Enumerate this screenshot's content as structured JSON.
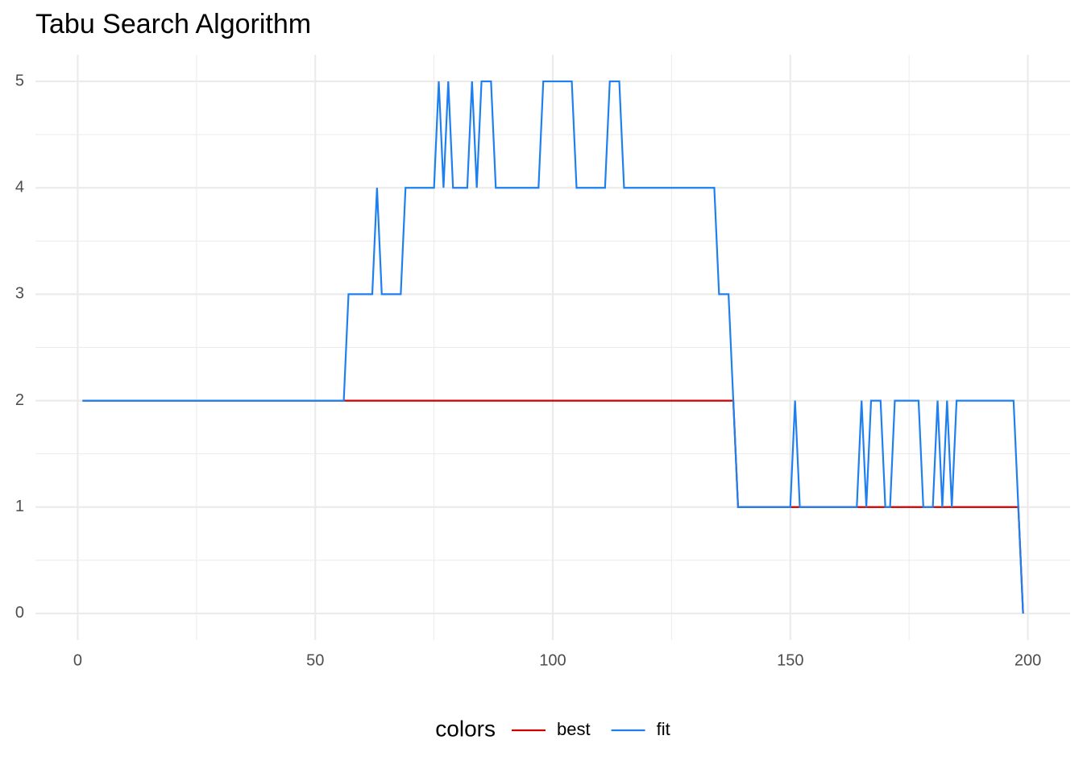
{
  "chart_data": {
    "type": "line",
    "title": "Tabu Search Algorithm",
    "legend_title": "colors",
    "legend_position": "bottom",
    "grid": true,
    "xlim": [
      -8.9,
      208.9
    ],
    "xticks": [
      0,
      50,
      100,
      150,
      200
    ],
    "ylim": [
      -0.25,
      5.25
    ],
    "yticks": [
      0,
      1,
      2,
      3,
      4,
      5
    ],
    "x": [
      1,
      2,
      3,
      4,
      5,
      6,
      7,
      8,
      9,
      10,
      11,
      12,
      13,
      14,
      15,
      16,
      17,
      18,
      19,
      20,
      21,
      22,
      23,
      24,
      25,
      26,
      27,
      28,
      29,
      30,
      31,
      32,
      33,
      34,
      35,
      36,
      37,
      38,
      39,
      40,
      41,
      42,
      43,
      44,
      45,
      46,
      47,
      48,
      49,
      50,
      51,
      52,
      53,
      54,
      55,
      56,
      57,
      58,
      59,
      60,
      61,
      62,
      63,
      64,
      65,
      66,
      67,
      68,
      69,
      70,
      71,
      72,
      73,
      74,
      75,
      76,
      77,
      78,
      79,
      80,
      81,
      82,
      83,
      84,
      85,
      86,
      87,
      88,
      89,
      90,
      91,
      92,
      93,
      94,
      95,
      96,
      97,
      98,
      99,
      100,
      101,
      102,
      103,
      104,
      105,
      106,
      107,
      108,
      109,
      110,
      111,
      112,
      113,
      114,
      115,
      116,
      117,
      118,
      119,
      120,
      121,
      122,
      123,
      124,
      125,
      126,
      127,
      128,
      129,
      130,
      131,
      132,
      133,
      134,
      135,
      136,
      137,
      138,
      139,
      140,
      141,
      142,
      143,
      144,
      145,
      146,
      147,
      148,
      149,
      150,
      151,
      152,
      153,
      154,
      155,
      156,
      157,
      158,
      159,
      160,
      161,
      162,
      163,
      164,
      165,
      166,
      167,
      168,
      169,
      170,
      171,
      172,
      173,
      174,
      175,
      176,
      177,
      178,
      179,
      180,
      181,
      182,
      183,
      184,
      185,
      186,
      187,
      188,
      189,
      190,
      191,
      192,
      193,
      194,
      195,
      196,
      197,
      198,
      199
    ],
    "series": [
      {
        "name": "best",
        "color": "#cd0000",
        "values": [
          2,
          2,
          2,
          2,
          2,
          2,
          2,
          2,
          2,
          2,
          2,
          2,
          2,
          2,
          2,
          2,
          2,
          2,
          2,
          2,
          2,
          2,
          2,
          2,
          2,
          2,
          2,
          2,
          2,
          2,
          2,
          2,
          2,
          2,
          2,
          2,
          2,
          2,
          2,
          2,
          2,
          2,
          2,
          2,
          2,
          2,
          2,
          2,
          2,
          2,
          2,
          2,
          2,
          2,
          2,
          2,
          2,
          2,
          2,
          2,
          2,
          2,
          2,
          2,
          2,
          2,
          2,
          2,
          2,
          2,
          2,
          2,
          2,
          2,
          2,
          2,
          2,
          2,
          2,
          2,
          2,
          2,
          2,
          2,
          2,
          2,
          2,
          2,
          2,
          2,
          2,
          2,
          2,
          2,
          2,
          2,
          2,
          2,
          2,
          2,
          2,
          2,
          2,
          2,
          2,
          2,
          2,
          2,
          2,
          2,
          2,
          2,
          2,
          2,
          2,
          2,
          2,
          2,
          2,
          2,
          2,
          2,
          2,
          2,
          2,
          2,
          2,
          2,
          2,
          2,
          2,
          2,
          2,
          2,
          2,
          2,
          2,
          2,
          1,
          1,
          1,
          1,
          1,
          1,
          1,
          1,
          1,
          1,
          1,
          1,
          1,
          1,
          1,
          1,
          1,
          1,
          1,
          1,
          1,
          1,
          1,
          1,
          1,
          1,
          1,
          1,
          1,
          1,
          1,
          1,
          1,
          1,
          1,
          1,
          1,
          1,
          1,
          1,
          1,
          1,
          1,
          1,
          1,
          1,
          1,
          1,
          1,
          1,
          1,
          1,
          1,
          1,
          1,
          1,
          1,
          1,
          1,
          1,
          0
        ]
      },
      {
        "name": "fit",
        "color": "#1e80f0",
        "values": [
          2,
          2,
          2,
          2,
          2,
          2,
          2,
          2,
          2,
          2,
          2,
          2,
          2,
          2,
          2,
          2,
          2,
          2,
          2,
          2,
          2,
          2,
          2,
          2,
          2,
          2,
          2,
          2,
          2,
          2,
          2,
          2,
          2,
          2,
          2,
          2,
          2,
          2,
          2,
          2,
          2,
          2,
          2,
          2,
          2,
          2,
          2,
          2,
          2,
          2,
          2,
          2,
          2,
          2,
          2,
          2,
          3,
          3,
          3,
          3,
          3,
          3,
          4,
          3,
          3,
          3,
          3,
          3,
          4,
          4,
          4,
          4,
          4,
          4,
          4,
          5,
          4,
          5,
          4,
          4,
          4,
          4,
          5,
          4,
          5,
          5,
          5,
          4,
          4,
          4,
          4,
          4,
          4,
          4,
          4,
          4,
          4,
          5,
          5,
          5,
          5,
          5,
          5,
          5,
          4,
          4,
          4,
          4,
          4,
          4,
          4,
          5,
          5,
          5,
          4,
          4,
          4,
          4,
          4,
          4,
          4,
          4,
          4,
          4,
          4,
          4,
          4,
          4,
          4,
          4,
          4,
          4,
          4,
          4,
          3,
          3,
          3,
          2,
          1,
          1,
          1,
          1,
          1,
          1,
          1,
          1,
          1,
          1,
          1,
          1,
          2,
          1,
          1,
          1,
          1,
          1,
          1,
          1,
          1,
          1,
          1,
          1,
          1,
          1,
          2,
          1,
          2,
          2,
          2,
          1,
          1,
          2,
          2,
          2,
          2,
          2,
          2,
          1,
          1,
          1,
          2,
          1,
          2,
          1,
          2,
          2,
          2,
          2,
          2,
          2,
          2,
          2,
          2,
          2,
          2,
          2,
          2,
          1,
          0
        ]
      }
    ]
  }
}
